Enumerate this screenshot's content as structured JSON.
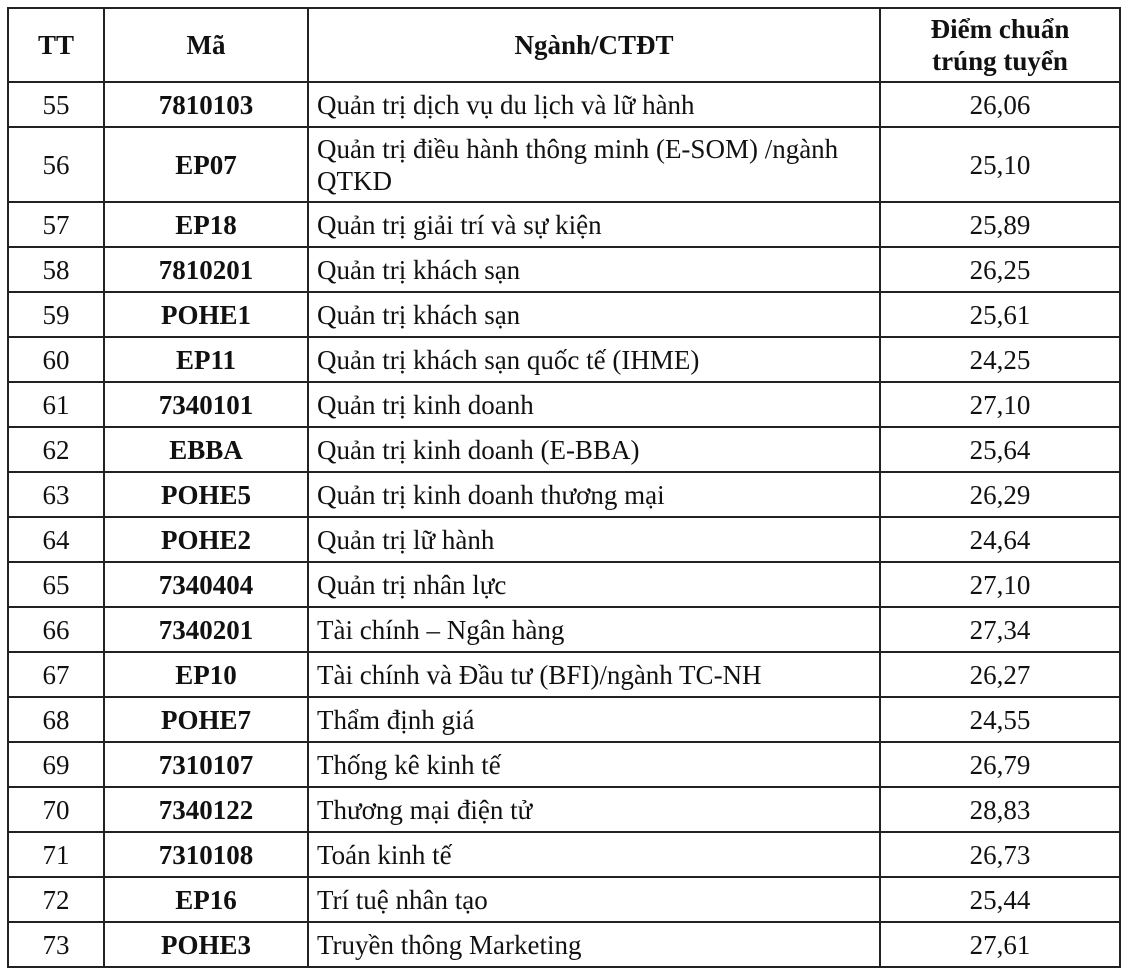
{
  "table": {
    "headers": [
      "TT",
      "Mã",
      "Ngành/CTĐT",
      "Điểm chuẩn trúng tuyển"
    ],
    "rows": [
      {
        "tt": "55",
        "ma": "7810103",
        "nganh": "Quản trị dịch vụ du lịch và lữ hành",
        "diem": "26,06"
      },
      {
        "tt": "56",
        "ma": "EP07",
        "nganh": "Quản trị điều hành thông minh (E-SOM) /ngành QTKD",
        "diem": "25,10"
      },
      {
        "tt": "57",
        "ma": "EP18",
        "nganh": "Quản trị giải trí và sự kiện",
        "diem": "25,89"
      },
      {
        "tt": "58",
        "ma": "7810201",
        "nganh": "Quản trị khách sạn",
        "diem": "26,25"
      },
      {
        "tt": "59",
        "ma": "POHE1",
        "nganh": "Quản trị khách sạn",
        "diem": "25,61"
      },
      {
        "tt": "60",
        "ma": "EP11",
        "nganh": "Quản trị khách sạn quốc tế (IHME)",
        "diem": "24,25"
      },
      {
        "tt": "61",
        "ma": "7340101",
        "nganh": "Quản trị kinh doanh",
        "diem": "27,10"
      },
      {
        "tt": "62",
        "ma": "EBBA",
        "nganh": "Quản trị kinh doanh (E-BBA)",
        "diem": "25,64"
      },
      {
        "tt": "63",
        "ma": "POHE5",
        "nganh": "Quản trị kinh doanh thương mại",
        "diem": "26,29"
      },
      {
        "tt": "64",
        "ma": "POHE2",
        "nganh": "Quản trị lữ hành",
        "diem": "24,64"
      },
      {
        "tt": "65",
        "ma": "7340404",
        "nganh": "Quản trị nhân lực",
        "diem": "27,10"
      },
      {
        "tt": "66",
        "ma": "7340201",
        "nganh": "Tài chính – Ngân hàng",
        "diem": "27,34"
      },
      {
        "tt": "67",
        "ma": "EP10",
        "nganh": "Tài chính và Đầu tư (BFI)/ngành TC-NH",
        "diem": "26,27"
      },
      {
        "tt": "68",
        "ma": "POHE7",
        "nganh": "Thẩm định giá",
        "diem": "24,55"
      },
      {
        "tt": "69",
        "ma": "7310107",
        "nganh": "Thống kê kinh tế",
        "diem": "26,79"
      },
      {
        "tt": "70",
        "ma": "7340122",
        "nganh": "Thương mại điện tử",
        "diem": "28,83"
      },
      {
        "tt": "71",
        "ma": "7310108",
        "nganh": "Toán kinh tế",
        "diem": "26,73"
      },
      {
        "tt": "72",
        "ma": "EP16",
        "nganh": "Trí tuệ nhân tạo",
        "diem": "25,44"
      },
      {
        "tt": "73",
        "ma": "POHE3",
        "nganh": "Truyền thông Marketing",
        "diem": "27,61"
      }
    ]
  }
}
